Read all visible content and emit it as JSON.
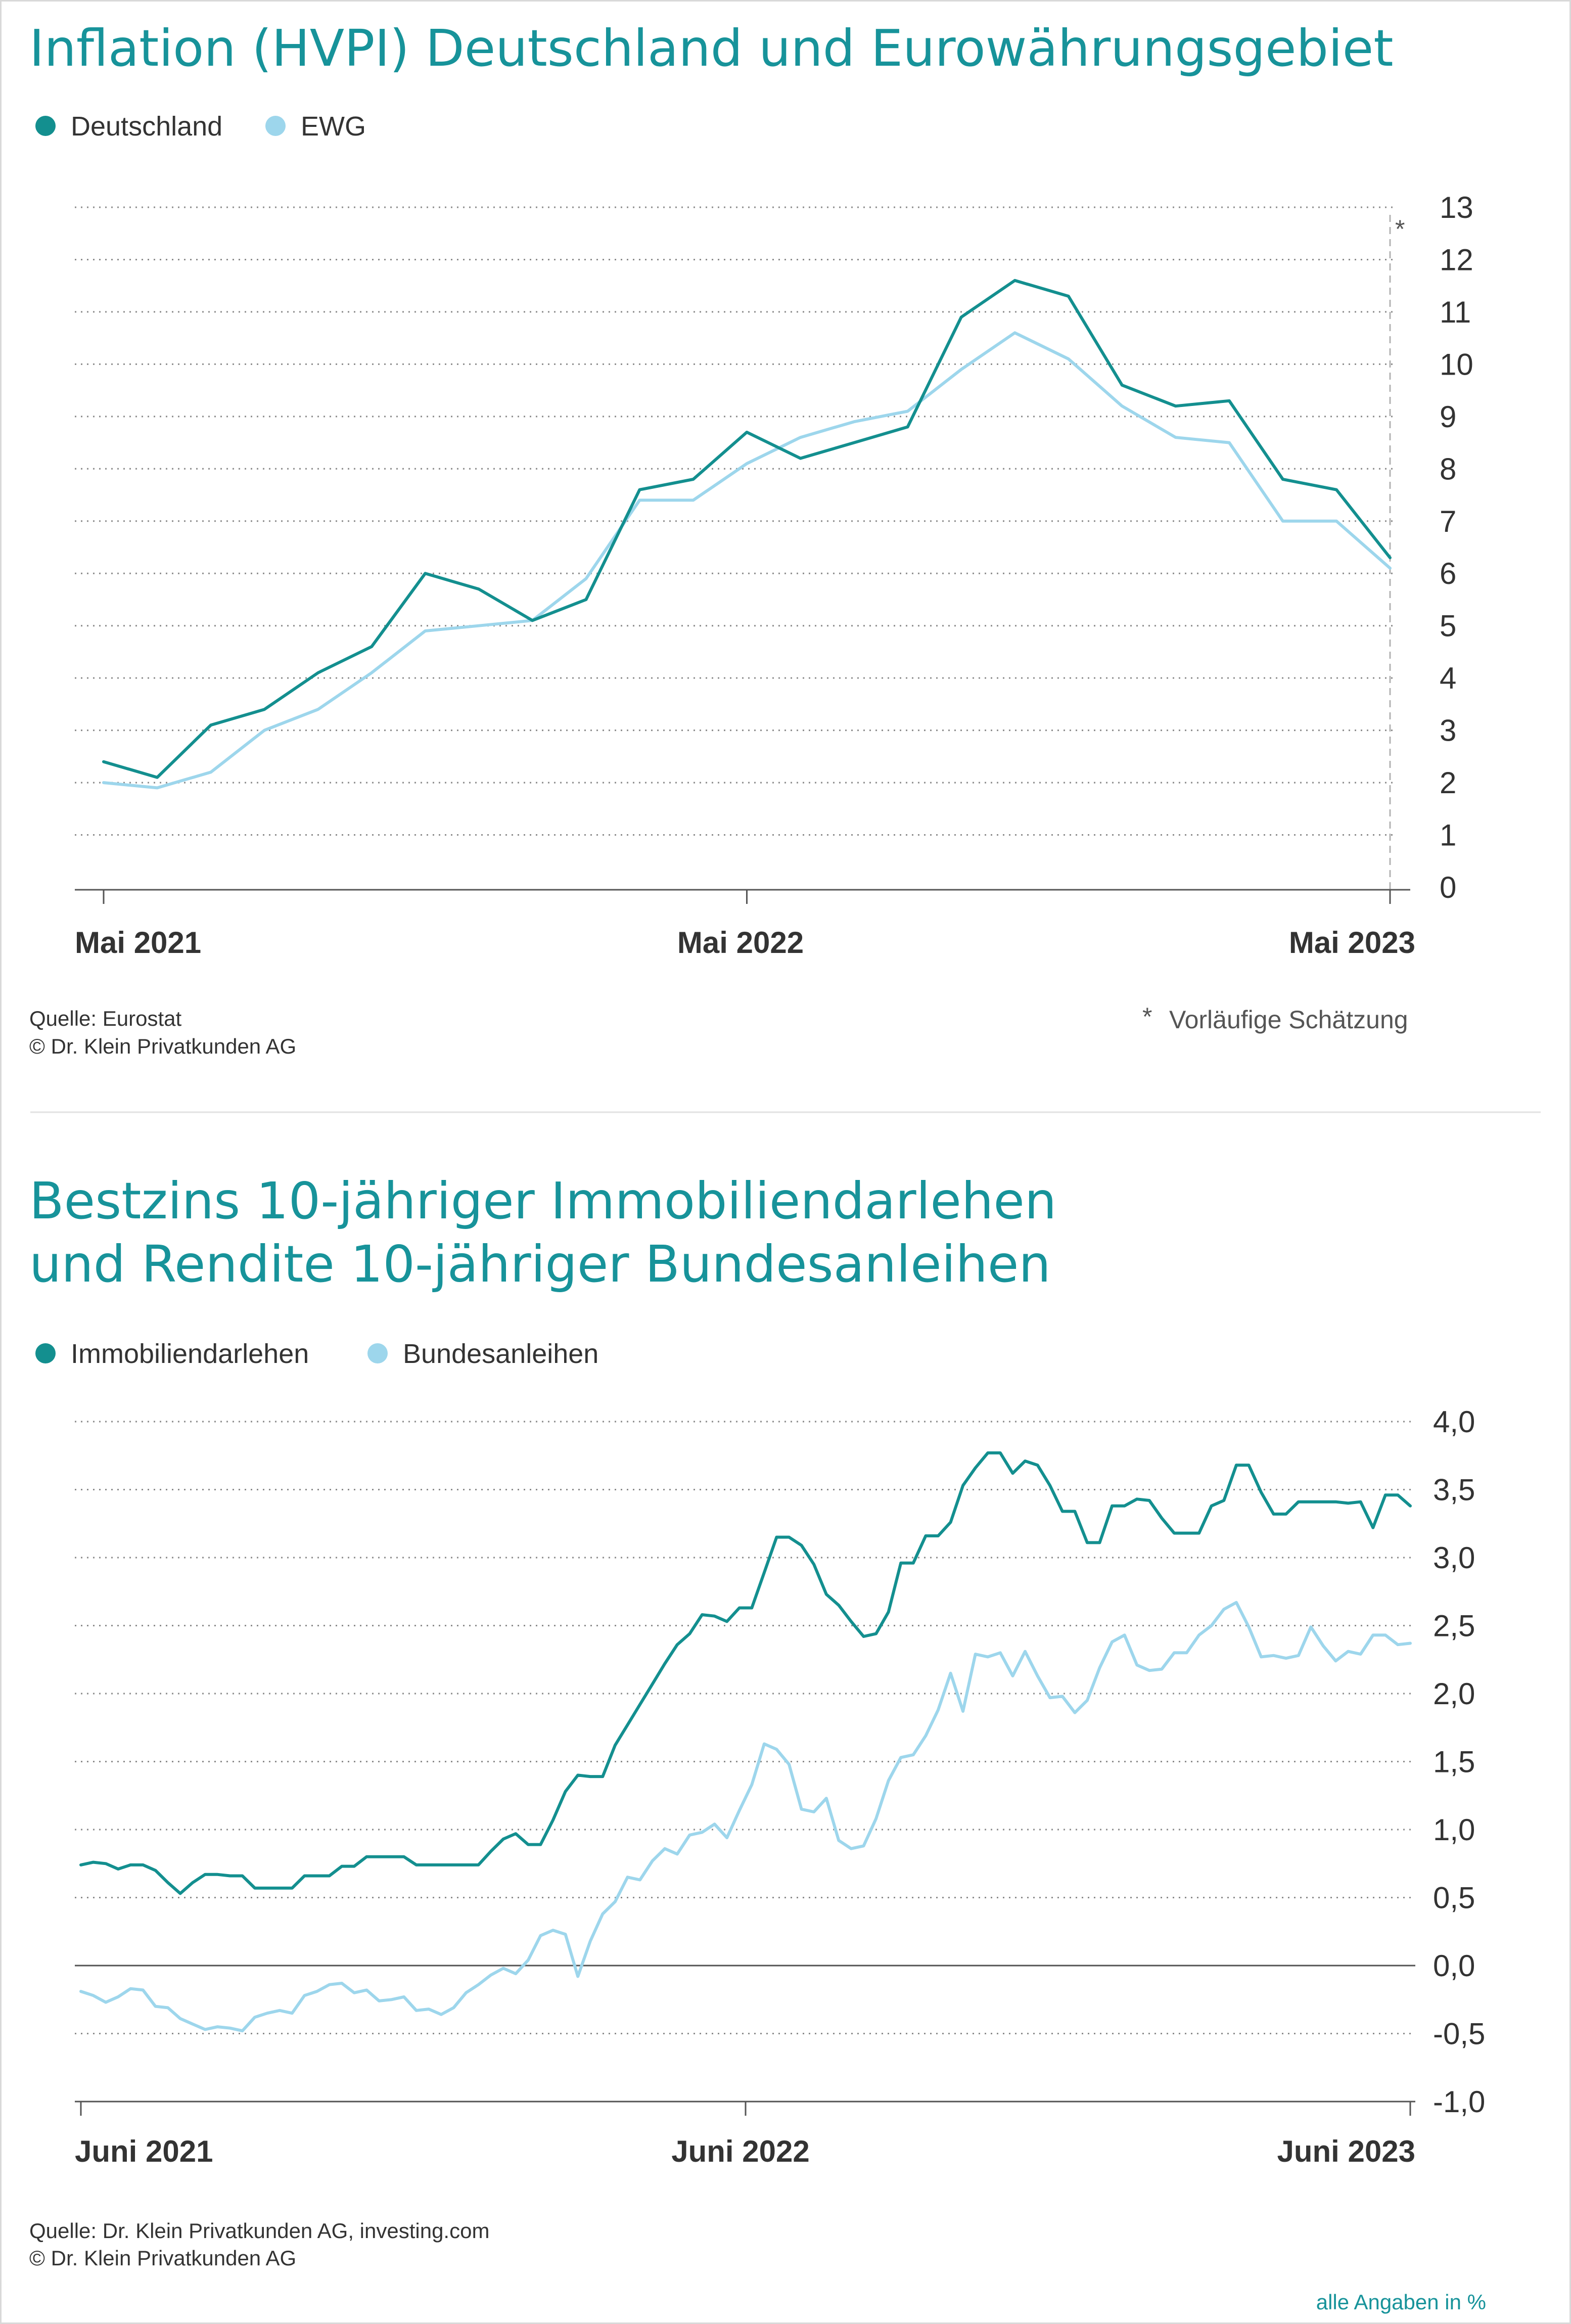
{
  "colors": {
    "primary": "#138f8f",
    "secondary": "#9dd6ec",
    "title": "#17939a"
  },
  "chart_data": [
    {
      "type": "line",
      "title": "Inflation (HVPI) Deutschland und Eurowährungsgebiet",
      "legend": [
        "Deutschland",
        "EWG"
      ],
      "x_tick_labels": [
        "Mai 2021",
        "Mai 2022",
        "Mai 2023"
      ],
      "y_tick_labels": [
        "13",
        "12",
        "11",
        "10",
        "9",
        "8",
        "7",
        "6",
        "5",
        "4",
        "3",
        "2",
        "1",
        "0"
      ],
      "ylim": [
        0,
        13
      ],
      "x_months": [
        "2021-05",
        "2021-06",
        "2021-07",
        "2021-08",
        "2021-09",
        "2021-10",
        "2021-11",
        "2021-12",
        "2022-01",
        "2022-02",
        "2022-03",
        "2022-04",
        "2022-05",
        "2022-06",
        "2022-07",
        "2022-08",
        "2022-09",
        "2022-10",
        "2022-11",
        "2022-12",
        "2023-01",
        "2023-02",
        "2023-03",
        "2023-04",
        "2023-05"
      ],
      "series": [
        {
          "name": "Deutschland",
          "values": [
            2.4,
            2.1,
            3.1,
            3.4,
            4.1,
            4.6,
            6.0,
            5.7,
            5.1,
            5.5,
            7.6,
            7.8,
            8.7,
            8.2,
            8.5,
            8.8,
            10.9,
            11.6,
            11.3,
            9.6,
            9.2,
            9.3,
            7.8,
            7.6,
            6.3
          ]
        },
        {
          "name": "EWG",
          "values": [
            2.0,
            1.9,
            2.2,
            3.0,
            3.4,
            4.1,
            4.9,
            5.0,
            5.1,
            5.9,
            7.4,
            7.4,
            8.1,
            8.6,
            8.9,
            9.1,
            9.9,
            10.6,
            10.1,
            9.2,
            8.6,
            8.5,
            7.0,
            7.0,
            6.1
          ]
        }
      ],
      "source": "Quelle: Eurostat",
      "copyright": "© Dr. Klein Privatkunden AG",
      "note_marker": "*",
      "note": "Vorläufige Schätzung"
    },
    {
      "type": "line",
      "title_line1": "Bestzins 10-jähriger Immobiliendarlehen",
      "title_line2": "und Rendite 10-jähriger Bundesanleihen",
      "legend": [
        "Immobiliendarlehen",
        "Bundesanleihen"
      ],
      "x_tick_labels": [
        "Juni 2021",
        "Juni 2022",
        "Juni 2023"
      ],
      "y_tick_labels": [
        "4,0",
        "3,5",
        "3,0",
        "2,5",
        "2,0",
        "1,5",
        "1,0",
        "0,5",
        "0,0",
        "-0,5",
        "-1,0"
      ],
      "ylim": [
        -1.0,
        4.0
      ],
      "x_range": [
        "Juni 2021",
        "Juni 2023"
      ],
      "series": [
        {
          "name": "Immobiliendarlehen",
          "values": [
            0.74,
            0.76,
            0.75,
            0.71,
            0.74,
            0.74,
            0.7,
            0.61,
            0.53,
            0.61,
            0.67,
            0.67,
            0.66,
            0.66,
            0.57,
            0.57,
            0.57,
            0.57,
            0.66,
            0.66,
            0.66,
            0.73,
            0.73,
            0.8,
            0.8,
            0.8,
            0.8,
            0.74,
            0.74,
            0.74,
            0.74,
            0.74,
            0.74,
            0.84,
            0.93,
            0.97,
            0.89,
            0.89,
            1.07,
            1.28,
            1.4,
            1.39,
            1.39,
            1.62,
            1.77,
            1.92,
            2.07,
            2.22,
            2.36,
            2.44,
            2.58,
            2.57,
            2.53,
            2.63,
            2.63,
            2.89,
            3.15,
            3.15,
            3.09,
            2.95,
            2.73,
            2.65,
            2.53,
            2.42,
            2.44,
            2.6,
            2.96,
            2.96,
            3.16,
            3.16,
            3.26,
            3.53,
            3.66,
            3.77,
            3.77,
            3.62,
            3.71,
            3.68,
            3.53,
            3.34,
            3.34,
            3.11,
            3.11,
            3.38,
            3.38,
            3.43,
            3.42,
            3.29,
            3.18,
            3.18,
            3.18,
            3.38,
            3.42,
            3.68,
            3.68,
            3.48,
            3.32,
            3.32,
            3.41,
            3.41,
            3.41,
            3.41,
            3.4,
            3.41,
            3.22,
            3.46,
            3.46,
            3.38
          ]
        },
        {
          "name": "Bundesanleihen",
          "values": [
            -0.19,
            -0.22,
            -0.27,
            -0.23,
            -0.17,
            -0.18,
            -0.3,
            -0.31,
            -0.39,
            -0.43,
            -0.47,
            -0.45,
            -0.46,
            -0.48,
            -0.38,
            -0.35,
            -0.33,
            -0.35,
            -0.22,
            -0.19,
            -0.14,
            -0.13,
            -0.2,
            -0.18,
            -0.26,
            -0.25,
            -0.23,
            -0.33,
            -0.32,
            -0.36,
            -0.31,
            -0.2,
            -0.14,
            -0.07,
            -0.02,
            -0.06,
            0.04,
            0.22,
            0.26,
            0.23,
            -0.08,
            0.18,
            0.38,
            0.47,
            0.65,
            0.63,
            0.77,
            0.86,
            0.82,
            0.96,
            0.98,
            1.04,
            0.94,
            1.14,
            1.33,
            1.63,
            1.59,
            1.48,
            1.15,
            1.13,
            1.23,
            0.92,
            0.86,
            0.88,
            1.08,
            1.36,
            1.53,
            1.55,
            1.69,
            1.88,
            2.15,
            1.87,
            2.29,
            2.27,
            2.3,
            2.13,
            2.31,
            2.13,
            1.97,
            1.98,
            1.86,
            1.95,
            2.19,
            2.38,
            2.43,
            2.21,
            2.17,
            2.18,
            2.3,
            2.3,
            2.43,
            2.5,
            2.62,
            2.67,
            2.49,
            2.27,
            2.28,
            2.26,
            2.28,
            2.49,
            2.35,
            2.24,
            2.31,
            2.29,
            2.43,
            2.43,
            2.36,
            2.37
          ]
        }
      ],
      "source": "Quelle: Dr. Klein Privatkunden AG, investing.com",
      "copyright": "© Dr. Klein Privatkunden AG",
      "unit_note": "alle Angaben in %"
    }
  ]
}
